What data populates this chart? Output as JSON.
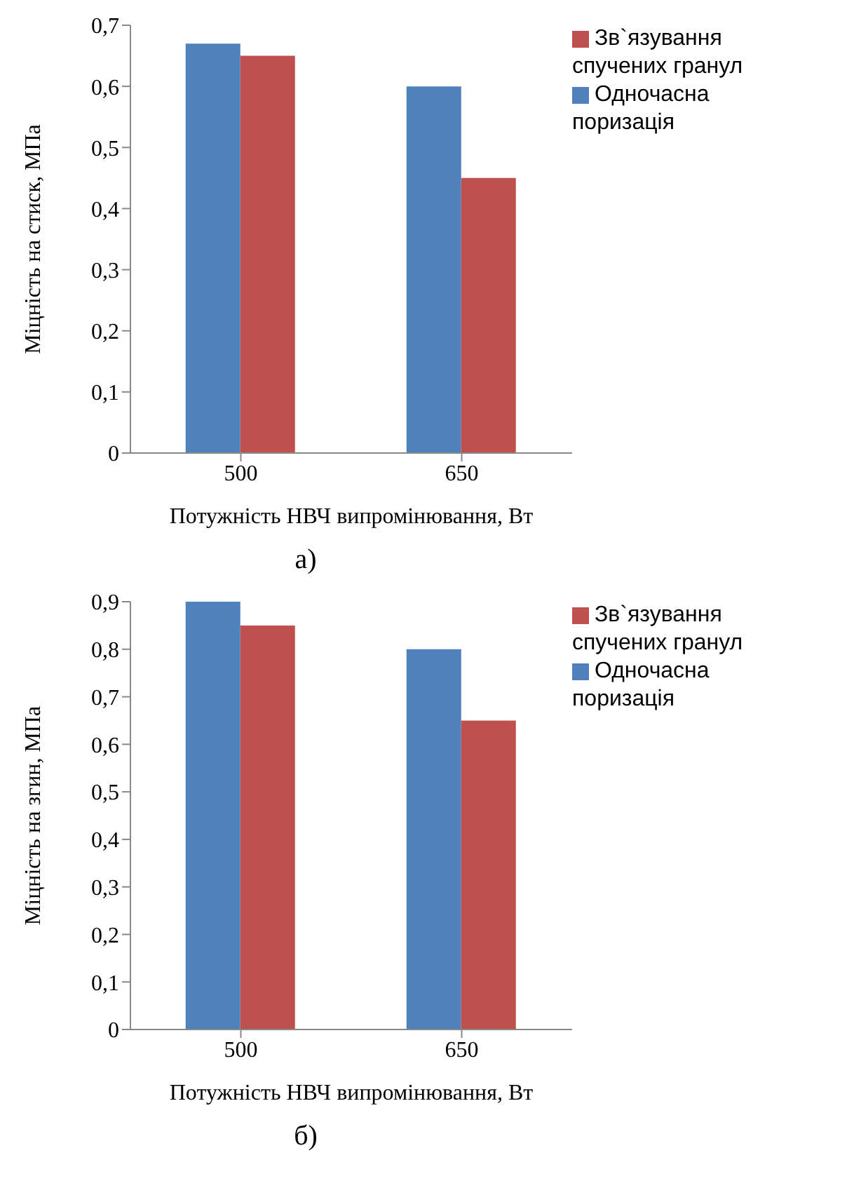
{
  "chart_data": [
    {
      "type": "bar",
      "categories": [
        "500",
        "650"
      ],
      "xlabel": "Потужність НВЧ випромінювання, Вт",
      "ylabel": "Міцність  на стиск, МПа",
      "ylim": [
        0,
        0.7
      ],
      "yticks": [
        0,
        {
          "value": 0.1,
          "label": "0,1"
        },
        {
          "value": 0.2,
          "label": "0,2"
        },
        {
          "value": 0.3,
          "label": "0,3"
        },
        {
          "value": 0.4,
          "label": "0,4"
        },
        {
          "value": 0.5,
          "label": "0,5"
        },
        {
          "value": 0.6,
          "label": "0,6"
        },
        {
          "value": 0.7,
          "label": "0,7"
        }
      ],
      "legend": "top right",
      "annotations": [
        "а)"
      ],
      "series": [
        {
          "name": "Одночасна поризація",
          "color": "#4f81bd",
          "values": [
            0.67,
            0.6
          ]
        },
        {
          "name": "Зв`язування спучених гранул",
          "color": "#c0504d",
          "values": [
            0.65,
            0.45
          ]
        }
      ]
    },
    {
      "type": "bar",
      "categories": [
        "500",
        "650"
      ],
      "xlabel": "Потужність НВЧ випромінювання, Вт",
      "ylabel": "Міцність  на згин,  МПа",
      "ylim": [
        0,
        0.9
      ],
      "yticks": [
        0,
        {
          "value": 0.1,
          "label": "0,1"
        },
        {
          "value": 0.2,
          "label": "0,2"
        },
        {
          "value": 0.3,
          "label": "0,3"
        },
        {
          "value": 0.4,
          "label": "0,4"
        },
        {
          "value": 0.5,
          "label": "0,5"
        },
        {
          "value": 0.6,
          "label": "0,6"
        },
        {
          "value": 0.7,
          "label": "0,7"
        },
        {
          "value": 0.8,
          "label": "0,8"
        },
        {
          "value": 0.9,
          "label": "0,9"
        }
      ],
      "legend": "top right",
      "annotations": [
        "б)"
      ],
      "series": [
        {
          "name": "Одночасна поризація",
          "color": "#4f81bd",
          "values": [
            0.9,
            0.8
          ]
        },
        {
          "name": "Зв`язування спучених гранул",
          "color": "#c0504d",
          "values": [
            0.85,
            0.65
          ]
        }
      ]
    }
  ]
}
